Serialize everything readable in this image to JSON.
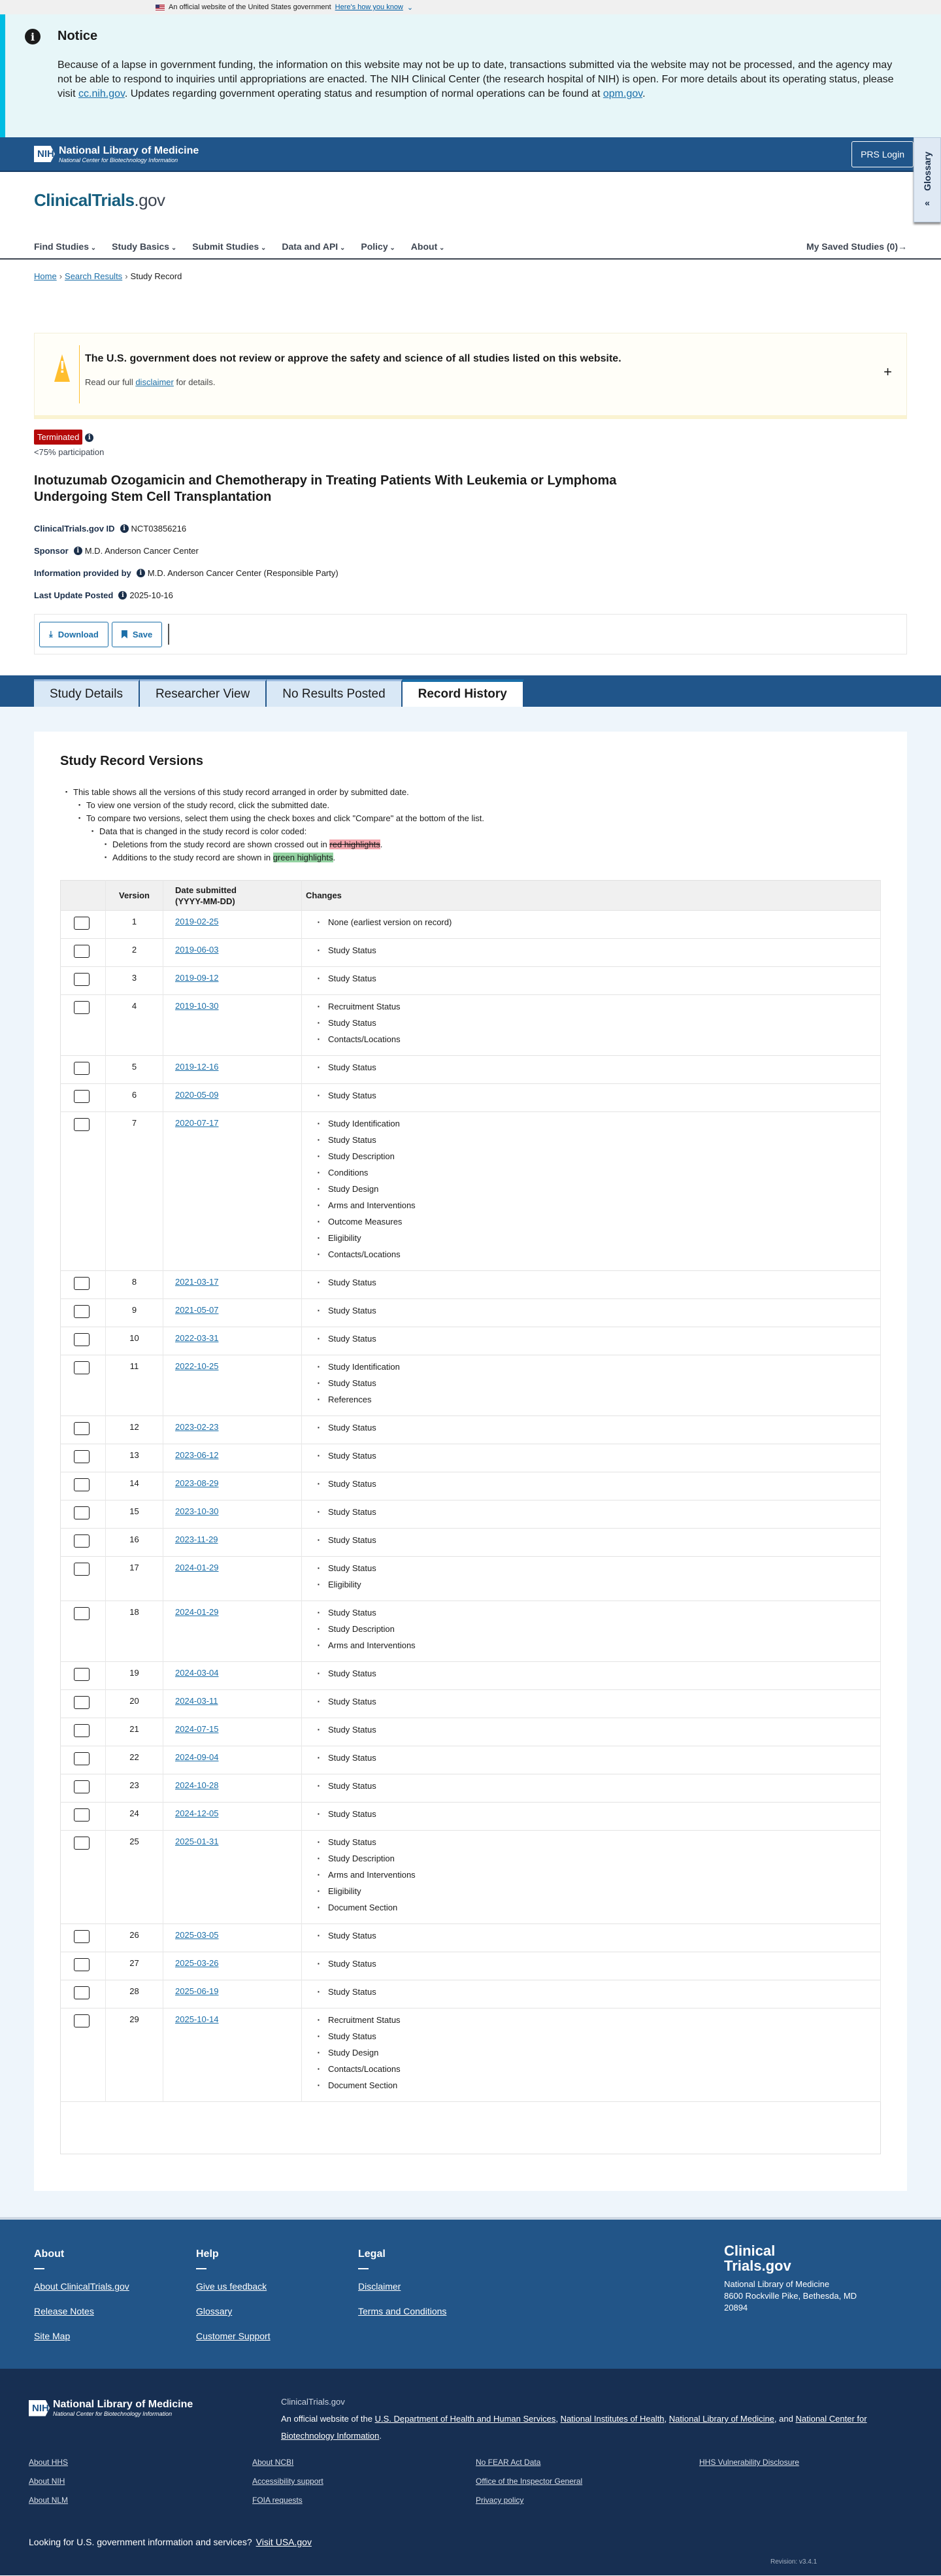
{
  "gov_banner": {
    "text": "An official website of the United States government",
    "link": "Here's how you know"
  },
  "notice": {
    "title": "Notice",
    "text_1": "Because of a lapse in government funding, the information on this website may not be up to date, transactions submitted via the website may not be processed, and the agency may not be able to respond to inquiries until appropriations are enacted. The NIH Clinical Center (the research hospital of NIH) is open. For more details about its operating status, please visit ",
    "link_1": "cc.nih.gov",
    "text_2": ". Updates regarding government operating status and resumption of normal operations can be found at ",
    "link_2": "opm.gov",
    "text_3": "."
  },
  "nih_header": {
    "nih": "NIH",
    "name": "National Library of Medicine",
    "sub": "National Center for Biotechnology Information",
    "login": "PRS Login"
  },
  "glossary": "Glossary",
  "brand": {
    "main": "ClinicalTrials",
    "suffix": ".gov"
  },
  "nav": {
    "items": [
      "Find Studies",
      "Study Basics",
      "Submit Studies",
      "Data and API",
      "Policy",
      "About"
    ],
    "saved": "My Saved Studies (0)"
  },
  "breadcrumb": {
    "home": "Home",
    "search": "Search Results",
    "current": "Study Record"
  },
  "disclaimer": {
    "title": "The U.S. government does not review or approve the safety and science of all studies listed on this website.",
    "text_1": "Read our full ",
    "link": "disclaimer",
    "text_2": " for details.",
    "expand": "+"
  },
  "study": {
    "status": "Terminated",
    "participation": "<75% participation",
    "title": "Inotuzumab Ozogamicin and Chemotherapy in Treating Patients With Leukemia or Lymphoma Undergoing Stem Cell Transplantation",
    "id_label": "ClinicalTrials.gov ID",
    "id": "NCT03856216",
    "sponsor_label": "Sponsor",
    "sponsor": "M.D. Anderson Cancer Center",
    "provided_label": "Information provided by",
    "provided": "M.D. Anderson Cancer Center (Responsible Party)",
    "updated_label": "Last Update Posted",
    "updated": "2025-10-16"
  },
  "actions": {
    "download": "Download",
    "save": "Save"
  },
  "tabs": [
    {
      "label": "Study Details"
    },
    {
      "label": "Researcher View"
    },
    {
      "label": "No Results Posted"
    },
    {
      "label": "Record History",
      "active": true
    }
  ],
  "versions": {
    "heading": "Study Record Versions",
    "intro_1": "This table shows all the versions of this study record arranged in order by submitted date.",
    "intro_2": "To view one version of the study record, click the submitted date.",
    "intro_3": "To compare two versions, select them using the check boxes and click \"Compare\" at the bottom of the list.",
    "intro_4": "Data that is changed in the study record is color coded:",
    "intro_5": "Deletions from the study record are shown crossed out in ",
    "red": "red highlights",
    "intro_6": "Additions to the study record are shown in ",
    "green": "green highlights",
    "colors": {
      "red": "#f2a5ad",
      "green": "#94d3a2"
    },
    "columns": {
      "version": "Version",
      "date": "Date submitted",
      "date_format": "(YYYY-MM-DD)",
      "changes": "Changes"
    },
    "rows": [
      {
        "version": "1",
        "date": "2019-02-25",
        "changes": [
          "None (earliest version on record)"
        ]
      },
      {
        "version": "2",
        "date": "2019-06-03",
        "changes": [
          "Study Status"
        ]
      },
      {
        "version": "3",
        "date": "2019-09-12",
        "changes": [
          "Study Status"
        ]
      },
      {
        "version": "4",
        "date": "2019-10-30",
        "changes": [
          "Recruitment Status",
          "Study Status",
          "Contacts/Locations"
        ]
      },
      {
        "version": "5",
        "date": "2019-12-16",
        "changes": [
          "Study Status"
        ]
      },
      {
        "version": "6",
        "date": "2020-05-09",
        "changes": [
          "Study Status"
        ]
      },
      {
        "version": "7",
        "date": "2020-07-17",
        "changes": [
          "Study Identification",
          "Study Status",
          "Study Description",
          "Conditions",
          "Study Design",
          "Arms and Interventions",
          "Outcome Measures",
          "Eligibility",
          "Contacts/Locations"
        ]
      },
      {
        "version": "8",
        "date": "2021-03-17",
        "changes": [
          "Study Status"
        ]
      },
      {
        "version": "9",
        "date": "2021-05-07",
        "changes": [
          "Study Status"
        ]
      },
      {
        "version": "10",
        "date": "2022-03-31",
        "changes": [
          "Study Status"
        ]
      },
      {
        "version": "11",
        "date": "2022-10-25",
        "changes": [
          "Study Identification",
          "Study Status",
          "References"
        ]
      },
      {
        "version": "12",
        "date": "2023-02-23",
        "changes": [
          "Study Status"
        ]
      },
      {
        "version": "13",
        "date": "2023-06-12",
        "changes": [
          "Study Status"
        ]
      },
      {
        "version": "14",
        "date": "2023-08-29",
        "changes": [
          "Study Status"
        ]
      },
      {
        "version": "15",
        "date": "2023-10-30",
        "changes": [
          "Study Status"
        ]
      },
      {
        "version": "16",
        "date": "2023-11-29",
        "changes": [
          "Study Status"
        ]
      },
      {
        "version": "17",
        "date": "2024-01-29",
        "changes": [
          "Study Status",
          "Eligibility"
        ]
      },
      {
        "version": "18",
        "date": "2024-01-29",
        "changes": [
          "Study Status",
          "Study Description",
          "Arms and Interventions"
        ]
      },
      {
        "version": "19",
        "date": "2024-03-04",
        "changes": [
          "Study Status"
        ]
      },
      {
        "version": "20",
        "date": "2024-03-11",
        "changes": [
          "Study Status"
        ]
      },
      {
        "version": "21",
        "date": "2024-07-15",
        "changes": [
          "Study Status"
        ]
      },
      {
        "version": "22",
        "date": "2024-09-04",
        "changes": [
          "Study Status"
        ]
      },
      {
        "version": "23",
        "date": "2024-10-28",
        "changes": [
          "Study Status"
        ]
      },
      {
        "version": "24",
        "date": "2024-12-05",
        "changes": [
          "Study Status"
        ]
      },
      {
        "version": "25",
        "date": "2025-01-31",
        "changes": [
          "Study Status",
          "Study Description",
          "Arms and Interventions",
          "Eligibility",
          "Document Section"
        ]
      },
      {
        "version": "26",
        "date": "2025-03-05",
        "changes": [
          "Study Status"
        ]
      },
      {
        "version": "27",
        "date": "2025-03-26",
        "changes": [
          "Study Status"
        ]
      },
      {
        "version": "28",
        "date": "2025-06-19",
        "changes": [
          "Study Status"
        ]
      },
      {
        "version": "29",
        "date": "2025-10-14",
        "changes": [
          "Recruitment Status",
          "Study Status",
          "Study Design",
          "Contacts/Locations",
          "Document Section"
        ]
      }
    ]
  },
  "footer": {
    "about": {
      "title": "About",
      "links": [
        "About ClinicalTrials.gov",
        "Release Notes",
        "Site Map"
      ]
    },
    "help": {
      "title": "Help",
      "links": [
        "Give us feedback",
        "Glossary",
        "Customer Support"
      ]
    },
    "legal": {
      "title": "Legal",
      "links": [
        "Disclaimer",
        "Terms and Conditions"
      ]
    },
    "brand": {
      "line1": "Clinical",
      "line2": "Trials.gov",
      "org": "National Library of Medicine",
      "addr1": "8600 Rockville Pike, Bethesda, MD",
      "addr2": "20894"
    },
    "site": "ClinicalTrials.gov",
    "official": "An official website of the ",
    "hhs": "U.S. Department of Health and Human Services",
    "nih": "National Institutes of Health",
    "nlm": "National Library of Medicine",
    "and": "and ",
    "ncbi": "National Center for Biotechnology Information",
    "links": [
      "About HHS",
      "About NCBI",
      "No FEAR Act Data",
      "HHS Vulnerability Disclosure",
      "About NIH",
      "Accessibility support",
      "Office of the Inspector General",
      "",
      "About NLM",
      "FOIA requests",
      "Privacy policy",
      ""
    ],
    "usa_q": "Looking for U.S. government information and services?",
    "usa_link": "Visit USA.gov",
    "revision": "Revision: v3.4.1"
  }
}
